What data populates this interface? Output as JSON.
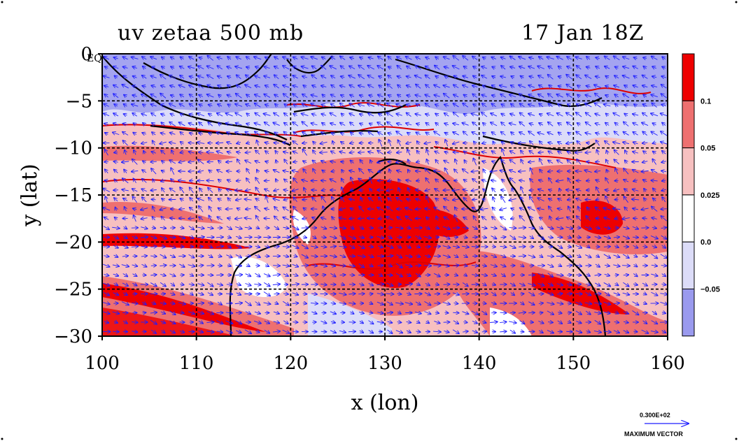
{
  "header": {
    "left_title": "uv zetaa 500 mb",
    "right_title": "17 Jan 18Z"
  },
  "chart_data": {
    "type": "heatmap",
    "title": "uv zetaa 500 mb",
    "date_label": "17 Jan 18Z",
    "xlabel": "x (lon)",
    "ylabel": "y (lat)",
    "xlim": [
      100,
      160
    ],
    "ylim": [
      -30,
      0
    ],
    "x_ticks": [
      "100",
      "110",
      "120",
      "130",
      "140",
      "150",
      "160"
    ],
    "y_ticks": [
      "0",
      "−5",
      "−10",
      "−15",
      "−20",
      "−25",
      "−30"
    ],
    "grid": true,
    "corner_label": "EQ",
    "colorbar": {
      "levels": [
        "0.1",
        "0.05",
        "0.025",
        "0.0",
        "−0.05"
      ],
      "colors": [
        "#ee0000",
        "#ee7070",
        "#f7c0c0",
        "#ffffff",
        "#dcdcf8",
        "#9a9aee"
      ]
    },
    "vector_reference": {
      "magnitude": "0.300E+02",
      "label": "MAXIMUM VECTOR"
    }
  },
  "colors": {
    "contour": "#dd0000",
    "vector": "#1e1eff",
    "coast": "#000000"
  }
}
